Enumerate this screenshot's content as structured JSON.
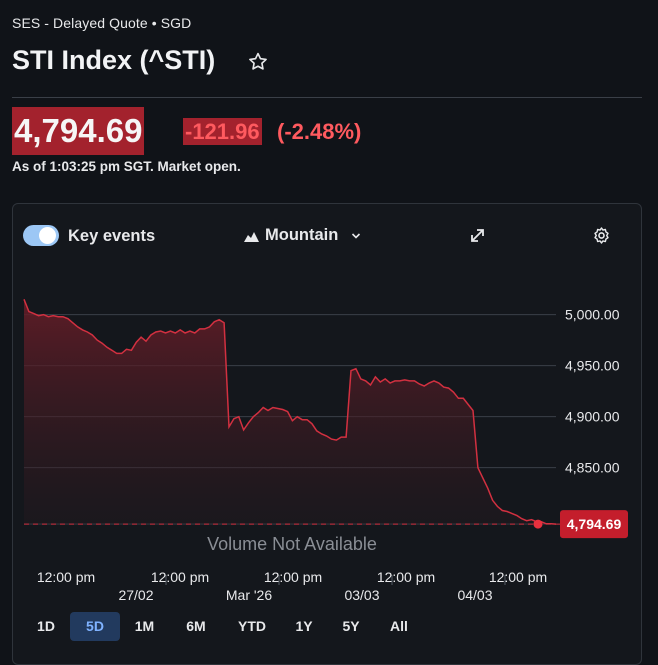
{
  "header": {
    "quote_source": "SES - Delayed Quote • SGD",
    "title": "STI Index (^STI)"
  },
  "quote": {
    "price": "4,794.69",
    "change": "-121.96",
    "change_pct": "(-2.48%)",
    "as_of": "As of 1:03:25 pm SGT. Market open."
  },
  "toolbar": {
    "key_events_label": "Key events",
    "key_events_on": true,
    "chart_type_label": "Mountain"
  },
  "colors": {
    "negative": "#ff5a5f",
    "line": "#d23040",
    "price_bg": "#a3222d",
    "toggle": "#9cc7f5",
    "active_range": "#7fb2ff"
  },
  "chart_data": {
    "type": "area",
    "ylim": [
      4783,
      5032
    ],
    "y_ticks": [
      5000,
      4950,
      4900,
      4850
    ],
    "y_tick_labels": [
      "5,000.00",
      "4,950.00",
      "4,900.00",
      "4,850.00"
    ],
    "last_value": 4794.69,
    "last_value_label": "4,794.69",
    "volume_note": "Volume Not Available",
    "x_tick_labels": [
      "12:00 pm",
      "12:00 pm",
      "12:00 pm",
      "12:00 pm",
      "12:00 pm"
    ],
    "x_date_labels": [
      "27/02",
      "Mar '26",
      "03/03",
      "04/03"
    ],
    "series": [
      {
        "values": [
          5015,
          5003,
          5001,
          4999,
          5000,
          4998,
          4999,
          4998,
          4998,
          4996,
          4992,
          4988,
          4985,
          4983,
          4980,
          4975,
          4972,
          4968,
          4965,
          4962,
          4962,
          4966,
          4965,
          4973,
          4978,
          4974,
          4980,
          4983,
          4984,
          4982,
          4984,
          4982,
          4985,
          4982,
          4984,
          4982,
          4986,
          4986,
          4988,
          4993,
          4995,
          4992,
          4890,
          4898,
          4900,
          4887,
          4894,
          4900,
          4904,
          4909,
          4906,
          4909,
          4908,
          4907,
          4905,
          4896,
          4900,
          4897,
          4897,
          4893,
          4886,
          4883,
          4881,
          4878,
          4877,
          4880,
          4880,
          4945,
          4947,
          4937,
          4935,
          4931,
          4939,
          4934,
          4937,
          4933,
          4935,
          4935,
          4936,
          4935,
          4935,
          4932,
          4930,
          4933,
          4935,
          4933,
          4929,
          4928,
          4924,
          4918,
          4918,
          4912,
          4906,
          4850,
          4840,
          4830,
          4818,
          4812,
          4808,
          4807,
          4805,
          4803,
          4800,
          4798,
          4799,
          4797,
          4797,
          4795,
          4795,
          4794.69
        ]
      }
    ]
  },
  "ranges": [
    "1D",
    "5D",
    "1M",
    "6M",
    "YTD",
    "1Y",
    "5Y",
    "All"
  ],
  "active_range": "5D"
}
